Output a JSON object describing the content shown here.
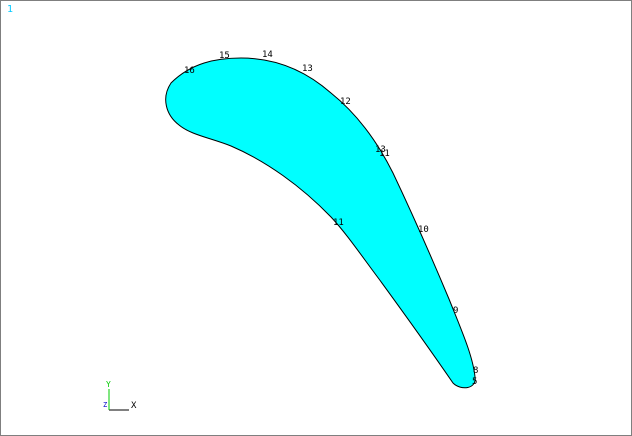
{
  "window": {
    "number": "1",
    "background": "#ffffff",
    "border_color": "#7f7f7f"
  },
  "model": {
    "fill_color": "#00ffff",
    "outline_color": "#000000",
    "labels": [
      "16",
      "15",
      "14",
      "13",
      "12",
      "13",
      "11",
      "10",
      "9",
      "8",
      "5",
      "11"
    ]
  },
  "triad": {
    "x_label": "X",
    "y_label": "Y",
    "z_label": "Z"
  }
}
